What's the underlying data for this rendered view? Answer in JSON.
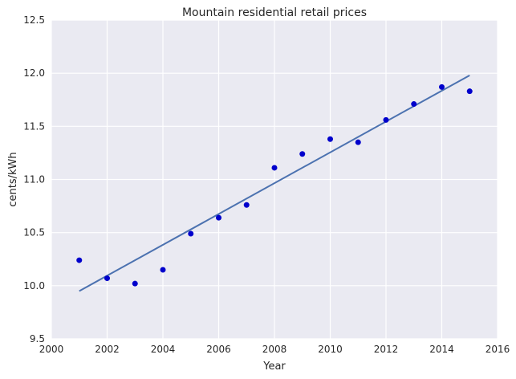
{
  "chart_data": {
    "type": "scatter",
    "title": "Mountain   residential retail prices",
    "xlabel": "Year",
    "ylabel": "cents/kWh",
    "xlim": [
      2000,
      2016
    ],
    "ylim": [
      9.5,
      12.5
    ],
    "xticks": [
      "2000",
      "2002",
      "2004",
      "2006",
      "2008",
      "2010",
      "2012",
      "2014",
      "2016"
    ],
    "yticks": [
      "9.5",
      "10.0",
      "10.5",
      "11.0",
      "11.5",
      "12.0",
      "12.5"
    ],
    "grid": true,
    "series": [
      {
        "type": "scatter",
        "color": "#0000cc",
        "points": [
          [
            2001,
            10.24
          ],
          [
            2002,
            10.07
          ],
          [
            2003,
            10.02
          ],
          [
            2004,
            10.15
          ],
          [
            2005,
            10.49
          ],
          [
            2006,
            10.64
          ],
          [
            2007,
            10.76
          ],
          [
            2008,
            11.11
          ],
          [
            2009,
            11.24
          ],
          [
            2010,
            11.38
          ],
          [
            2011,
            11.35
          ],
          [
            2012,
            11.56
          ],
          [
            2013,
            11.71
          ],
          [
            2014,
            11.87
          ],
          [
            2015,
            11.83
          ]
        ]
      },
      {
        "type": "line",
        "color": "#4c72b0",
        "points": [
          [
            2001,
            9.95
          ],
          [
            2015,
            11.98
          ]
        ]
      }
    ]
  }
}
